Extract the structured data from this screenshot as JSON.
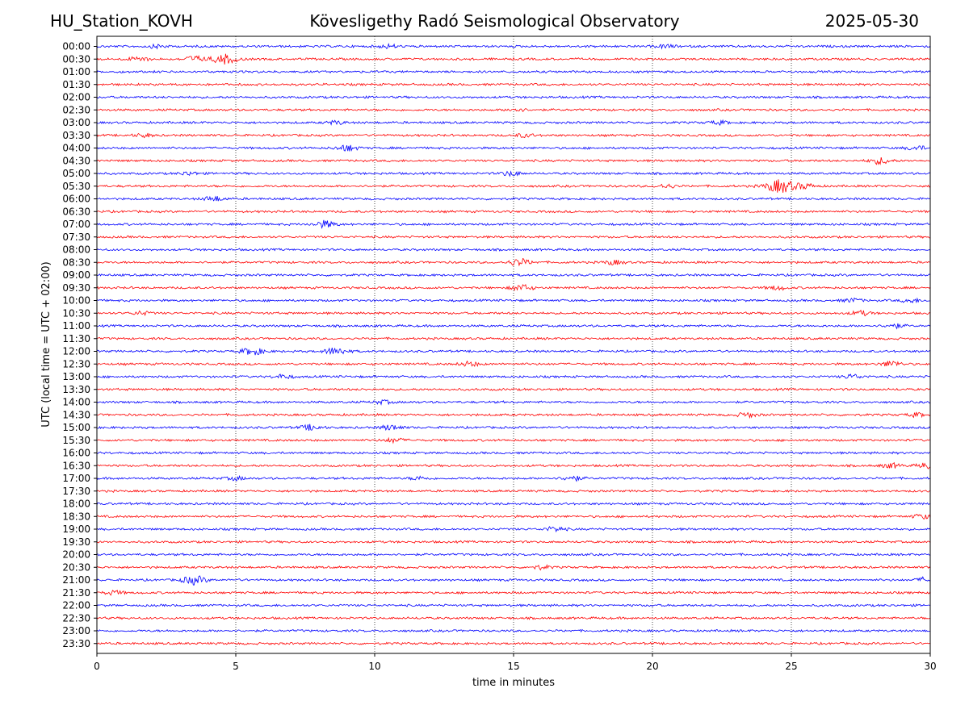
{
  "header": {
    "station": "HU_Station_KOVH",
    "title": "Kövesligethy Radó Seismological Observatory",
    "date": "2025-05-30"
  },
  "chart_data": {
    "type": "line",
    "title": "Kövesligethy Radó Seismological Observatory",
    "xlabel": "time in minutes",
    "ylabel": "UTC (local time = UTC + 02:00)",
    "xlim": [
      0,
      30
    ],
    "x_ticks": [
      "0",
      "5",
      "10",
      "15",
      "20",
      "25",
      "30"
    ],
    "grid": "vertical dotted lines at 5-minute ticks",
    "colors": {
      "even_rows": "#0000ff",
      "odd_rows": "#ff0000"
    },
    "rows": [
      {
        "label": "00:00",
        "events": [
          [
            2.2,
            0.9
          ],
          [
            10.5,
            0.9
          ],
          [
            20.5,
            0.9
          ]
        ]
      },
      {
        "label": "00:30",
        "events": [
          [
            4.6,
            2.5
          ],
          [
            3.5,
            1.5
          ],
          [
            1.5,
            1.2
          ]
        ]
      },
      {
        "label": "01:00",
        "events": []
      },
      {
        "label": "01:30",
        "events": []
      },
      {
        "label": "02:00",
        "events": []
      },
      {
        "label": "02:30",
        "events": [
          [
            15.1,
            0.9
          ]
        ]
      },
      {
        "label": "03:00",
        "events": [
          [
            8.6,
            0.9
          ],
          [
            22.4,
            0.9
          ]
        ]
      },
      {
        "label": "03:30",
        "events": [
          [
            1.7,
            0.9
          ],
          [
            15.4,
            0.9
          ]
        ]
      },
      {
        "label": "04:00",
        "events": [
          [
            9.0,
            1.6
          ],
          [
            29.5,
            1.1
          ]
        ]
      },
      {
        "label": "04:30",
        "events": [
          [
            28.2,
            1.6
          ]
        ]
      },
      {
        "label": "05:00",
        "events": [
          [
            3.3,
            0.9
          ],
          [
            14.9,
            1.2
          ]
        ]
      },
      {
        "label": "05:30",
        "events": [
          [
            24.6,
            3.5
          ],
          [
            25.5,
            1.2
          ],
          [
            20.5,
            1.0
          ]
        ]
      },
      {
        "label": "06:00",
        "events": [
          [
            4.2,
            1.3
          ]
        ]
      },
      {
        "label": "06:30",
        "events": []
      },
      {
        "label": "07:00",
        "events": [
          [
            8.2,
            1.8
          ]
        ]
      },
      {
        "label": "07:30",
        "events": []
      },
      {
        "label": "08:00",
        "events": []
      },
      {
        "label": "08:30",
        "events": [
          [
            15.2,
            1.8
          ],
          [
            18.6,
            1.1
          ]
        ]
      },
      {
        "label": "09:00",
        "events": []
      },
      {
        "label": "09:30",
        "events": [
          [
            15.3,
            1.6
          ],
          [
            24.5,
            1.0
          ]
        ]
      },
      {
        "label": "10:00",
        "events": [
          [
            27.2,
            1.0
          ],
          [
            29.3,
            1.0
          ]
        ]
      },
      {
        "label": "10:30",
        "events": [
          [
            1.6,
            0.9
          ],
          [
            27.5,
            1.2
          ]
        ]
      },
      {
        "label": "11:00",
        "events": [
          [
            28.7,
            1.1
          ]
        ]
      },
      {
        "label": "11:30",
        "events": []
      },
      {
        "label": "12:00",
        "events": [
          [
            5.6,
            1.9
          ],
          [
            8.6,
            1.9
          ]
        ]
      },
      {
        "label": "12:30",
        "events": [
          [
            13.4,
            1.2
          ],
          [
            28.6,
            1.5
          ]
        ]
      },
      {
        "label": "13:00",
        "events": [
          [
            6.7,
            1.0
          ],
          [
            27.2,
            1.1
          ]
        ]
      },
      {
        "label": "13:30",
        "events": []
      },
      {
        "label": "14:00",
        "events": [
          [
            10.3,
            0.9
          ]
        ]
      },
      {
        "label": "14:30",
        "events": [
          [
            23.4,
            1.2
          ],
          [
            29.5,
            1.0
          ]
        ]
      },
      {
        "label": "15:00",
        "events": [
          [
            7.7,
            1.4
          ],
          [
            10.6,
            1.4
          ]
        ]
      },
      {
        "label": "15:30",
        "events": [
          [
            10.7,
            1.1
          ]
        ]
      },
      {
        "label": "16:00",
        "events": []
      },
      {
        "label": "16:30",
        "events": [
          [
            28.6,
            1.2
          ],
          [
            29.9,
            1.4
          ]
        ]
      },
      {
        "label": "17:00",
        "events": [
          [
            17.1,
            1.3
          ],
          [
            5.0,
            0.9
          ],
          [
            11.6,
            0.9
          ]
        ]
      },
      {
        "label": "17:30",
        "events": []
      },
      {
        "label": "18:00",
        "events": []
      },
      {
        "label": "18:30",
        "events": [
          [
            29.7,
            1.1
          ]
        ]
      },
      {
        "label": "19:00",
        "events": [
          [
            16.5,
            1.2
          ]
        ]
      },
      {
        "label": "19:30",
        "events": []
      },
      {
        "label": "20:00",
        "events": []
      },
      {
        "label": "20:30",
        "events": [
          [
            16.0,
            0.9
          ]
        ]
      },
      {
        "label": "21:00",
        "events": [
          [
            3.5,
            2.2
          ],
          [
            29.9,
            1.4
          ]
        ]
      },
      {
        "label": "21:30",
        "events": [
          [
            0.6,
            1.0
          ]
        ]
      },
      {
        "label": "22:00",
        "events": []
      },
      {
        "label": "22:30",
        "events": []
      },
      {
        "label": "23:00",
        "events": []
      },
      {
        "label": "23:30",
        "events": []
      }
    ]
  }
}
